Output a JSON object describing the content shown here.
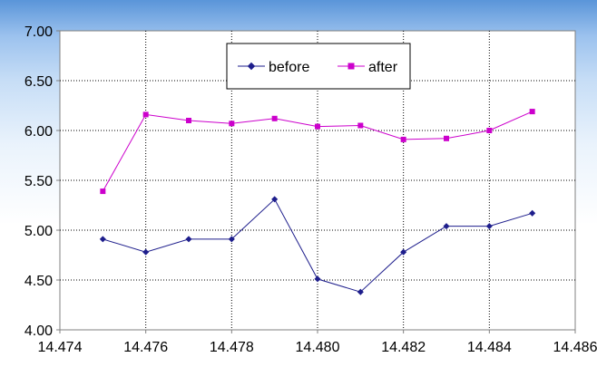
{
  "chart_data": {
    "type": "line",
    "title": "",
    "xlabel": "",
    "ylabel": "",
    "xlim": [
      14.474,
      14.486
    ],
    "ylim": [
      4.0,
      7.0
    ],
    "x_ticks": [
      "14.474",
      "14.476",
      "14.478",
      "14.480",
      "14.482",
      "14.484",
      "14.486"
    ],
    "y_ticks": [
      "4.00",
      "4.50",
      "5.00",
      "5.50",
      "6.00",
      "6.50",
      "7.00"
    ],
    "grid": true,
    "legend_position": "top-center",
    "x": [
      14.475,
      14.476,
      14.477,
      14.478,
      14.479,
      14.48,
      14.481,
      14.482,
      14.483,
      14.484,
      14.485
    ],
    "series": [
      {
        "name": "before",
        "color": "#1e1e8c",
        "marker": "diamond",
        "values": [
          4.91,
          4.78,
          4.91,
          4.91,
          5.31,
          4.51,
          4.38,
          4.78,
          5.04,
          5.04,
          5.17
        ]
      },
      {
        "name": "after",
        "color": "#cc00cc",
        "marker": "square",
        "values": [
          5.39,
          6.16,
          6.1,
          6.07,
          6.12,
          6.04,
          6.05,
          5.91,
          5.92,
          6.0,
          6.19
        ]
      }
    ]
  }
}
